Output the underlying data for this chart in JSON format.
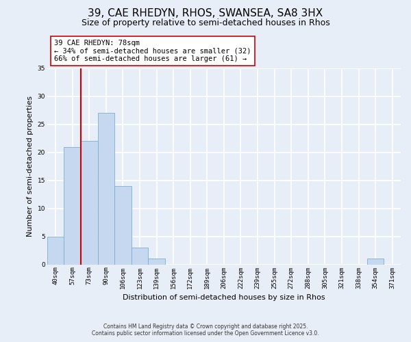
{
  "title": "39, CAE RHEDYN, RHOS, SWANSEA, SA8 3HX",
  "subtitle": "Size of property relative to semi-detached houses in Rhos",
  "xlabel": "Distribution of semi-detached houses by size in Rhos",
  "ylabel": "Number of semi-detached properties",
  "bin_labels": [
    "40sqm",
    "57sqm",
    "73sqm",
    "90sqm",
    "106sqm",
    "123sqm",
    "139sqm",
    "156sqm",
    "172sqm",
    "189sqm",
    "206sqm",
    "222sqm",
    "239sqm",
    "255sqm",
    "272sqm",
    "288sqm",
    "305sqm",
    "321sqm",
    "338sqm",
    "354sqm",
    "371sqm"
  ],
  "bin_values": [
    5,
    21,
    22,
    27,
    14,
    3,
    1,
    0,
    0,
    0,
    0,
    0,
    0,
    0,
    0,
    0,
    0,
    0,
    0,
    1,
    0
  ],
  "bar_color": "#c5d8f0",
  "bar_edge_color": "#7aafd4",
  "vline_color": "#cc0000",
  "vline_position": 1.5,
  "ylim": [
    0,
    35
  ],
  "yticks": [
    0,
    5,
    10,
    15,
    20,
    25,
    30,
    35
  ],
  "annotation_title": "39 CAE RHEDYN: 78sqm",
  "annotation_line1": "← 34% of semi-detached houses are smaller (32)",
  "annotation_line2": "66% of semi-detached houses are larger (61) →",
  "footer_line1": "Contains HM Land Registry data © Crown copyright and database right 2025.",
  "footer_line2": "Contains public sector information licensed under the Open Government Licence v3.0.",
  "background_color": "#e8eef8",
  "grid_color": "#ffffff",
  "title_fontsize": 11,
  "subtitle_fontsize": 9,
  "label_fontsize": 8,
  "tick_fontsize": 6.5,
  "annot_fontsize": 7.5
}
